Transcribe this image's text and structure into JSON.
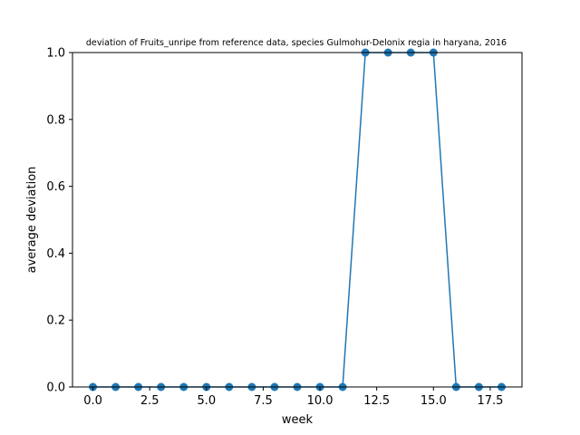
{
  "chart_data": {
    "type": "line",
    "title": "deviation of Fruits_unripe from reference data, species Gulmohur-Delonix regia in haryana, 2016",
    "xlabel": "week",
    "ylabel": "average deviation",
    "xlim": [
      -0.9,
      18.9
    ],
    "ylim": [
      0,
      1
    ],
    "xticks": [
      0,
      2.5,
      5,
      7.5,
      10,
      12.5,
      15,
      17.5
    ],
    "xtick_labels": [
      "0.0",
      "2.5",
      "5.0",
      "7.5",
      "10.0",
      "12.5",
      "15.0",
      "17.5"
    ],
    "yticks": [
      0,
      0.2,
      0.4,
      0.6,
      0.8,
      1.0
    ],
    "ytick_labels": [
      "0.0",
      "0.2",
      "0.4",
      "0.6",
      "0.8",
      "1.0"
    ],
    "grid": false,
    "series": [
      {
        "color": "#1f77b4",
        "marker": "circle",
        "x": [
          0,
          1,
          2,
          3,
          4,
          5,
          6,
          7,
          8,
          9,
          10,
          11,
          12,
          13,
          14,
          15,
          16,
          17,
          18
        ],
        "y": [
          0,
          0,
          0,
          0,
          0,
          0,
          0,
          0,
          0,
          0,
          0,
          0,
          1,
          1,
          1,
          1,
          0,
          0,
          0
        ]
      }
    ]
  }
}
